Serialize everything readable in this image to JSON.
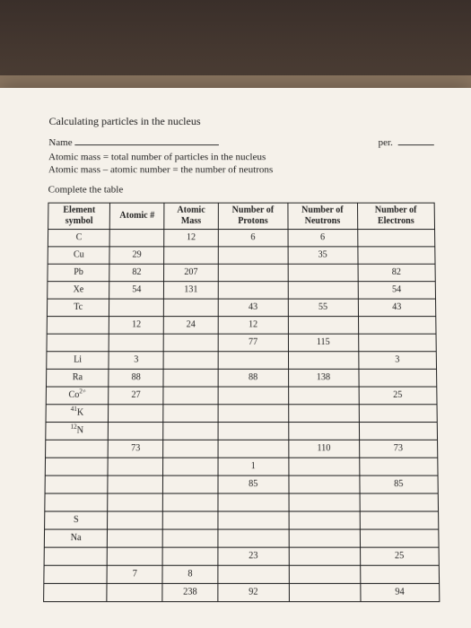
{
  "worksheet": {
    "title": "Calculating particles in the nucleus",
    "name_label": "Name",
    "per_label": "per.",
    "formula1": "Atomic mass = total number of particles in the nucleus",
    "formula2": "Atomic mass – atomic number = the number of neutrons",
    "instruction": "Complete the table"
  },
  "table": {
    "headers": {
      "symbol": "Element symbol",
      "atomic_num": "Atomic #",
      "atomic_mass": "Atomic Mass",
      "protons": "Number of Protons",
      "neutrons": "Number of Neutrons",
      "electrons": "Number of Electrons"
    },
    "rows": [
      {
        "symbol": "C",
        "anum": "",
        "mass": "12",
        "prot": "6",
        "neut": "6",
        "elec": ""
      },
      {
        "symbol": "Cu",
        "anum": "29",
        "mass": "",
        "prot": "",
        "neut": "35",
        "elec": ""
      },
      {
        "symbol": "Pb",
        "anum": "82",
        "mass": "207",
        "prot": "",
        "neut": "",
        "elec": "82"
      },
      {
        "symbol": "Xe",
        "anum": "54",
        "mass": "131",
        "prot": "",
        "neut": "",
        "elec": "54"
      },
      {
        "symbol": "Tc",
        "anum": "",
        "mass": "",
        "prot": "43",
        "neut": "55",
        "elec": "43"
      },
      {
        "symbol": "",
        "anum": "12",
        "mass": "24",
        "prot": "12",
        "neut": "",
        "elec": ""
      },
      {
        "symbol": "",
        "anum": "",
        "mass": "",
        "prot": "77",
        "neut": "115",
        "elec": ""
      },
      {
        "symbol": "Li",
        "anum": "3",
        "mass": "",
        "prot": "",
        "neut": "",
        "elec": "3"
      },
      {
        "symbol": "Ra",
        "anum": "88",
        "mass": "",
        "prot": "88",
        "neut": "138",
        "elec": ""
      },
      {
        "symbol_html": "Co<sup>2+</sup>",
        "anum": "27",
        "mass": "",
        "prot": "",
        "neut": "",
        "elec": "25"
      },
      {
        "symbol_html": "<sup>41</sup>K",
        "anum": "",
        "mass": "",
        "prot": "",
        "neut": "",
        "elec": ""
      },
      {
        "symbol_html": "<sup>12</sup>N",
        "anum": "",
        "mass": "",
        "prot": "",
        "neut": "",
        "elec": ""
      },
      {
        "symbol": "",
        "anum": "73",
        "mass": "",
        "prot": "",
        "neut": "110",
        "elec": "73"
      },
      {
        "symbol": "",
        "anum": "",
        "mass": "",
        "prot": "1",
        "neut": "",
        "elec": ""
      },
      {
        "symbol": "",
        "anum": "",
        "mass": "",
        "prot": "85",
        "neut": "",
        "elec": "85"
      },
      {
        "symbol": "",
        "anum": "",
        "mass": "",
        "prot": "",
        "neut": "",
        "elec": ""
      },
      {
        "symbol": "S",
        "anum": "",
        "mass": "",
        "prot": "",
        "neut": "",
        "elec": ""
      },
      {
        "symbol": "Na",
        "anum": "",
        "mass": "",
        "prot": "",
        "neut": "",
        "elec": ""
      },
      {
        "symbol": "",
        "anum": "",
        "mass": "",
        "prot": "23",
        "neut": "",
        "elec": "25"
      },
      {
        "symbol": "",
        "anum": "7",
        "mass": "8",
        "prot": "",
        "neut": "",
        "elec": ""
      },
      {
        "symbol": "",
        "anum": "",
        "mass": "238",
        "prot": "92",
        "neut": "",
        "elec": "94"
      }
    ]
  }
}
